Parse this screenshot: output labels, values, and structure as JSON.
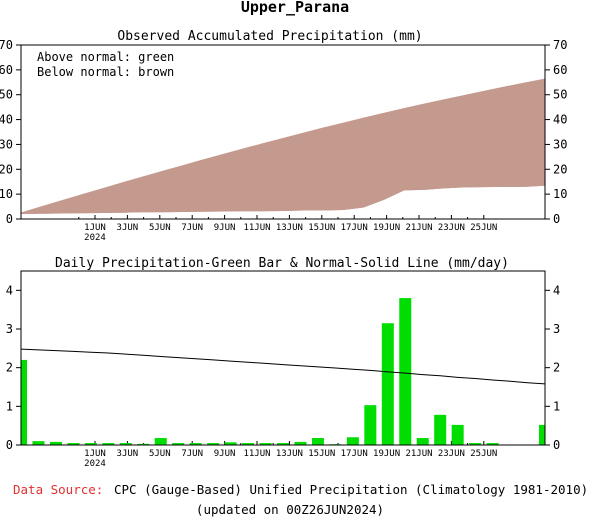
{
  "page": {
    "title": "Upper_Parana"
  },
  "footer": {
    "source_label": "Data Source:",
    "source_text": "CPC (Gauge-Based) Unified Precipitation (Climatology 1981-2010)",
    "updated": "(updated on 00Z26JUN2024)"
  },
  "colors": {
    "below_normal": "#c49a8f",
    "above_normal": "#00dd00",
    "bar": "#00dd00",
    "normal_line": "#000000",
    "source_label": "#e33030"
  },
  "chart_data": [
    {
      "type": "area",
      "title": "Observed Accumulated Precipitation (mm)",
      "annotations": [
        "Above normal: green",
        "Below normal: brown"
      ],
      "ylim": [
        0,
        70
      ],
      "yticks": [
        0,
        10,
        20,
        30,
        40,
        50,
        60,
        70
      ],
      "xtick_labels": [
        "1JUN",
        "3JUN",
        "5JUN",
        "7JUN",
        "9JUN",
        "11JUN",
        "13JUN",
        "15JUN",
        "17JUN",
        "19JUN",
        "21JUN",
        "23JUN",
        "25JUN"
      ],
      "year_label": "2024",
      "series": [
        {
          "name": "Observed",
          "values": [
            2.2,
            2.3,
            2.4,
            2.5,
            2.6,
            2.7,
            2.9,
            2.9,
            3.0,
            3.1,
            3.2,
            3.3,
            3.3,
            3.4,
            3.6,
            3.6,
            3.8,
            4.8,
            7.9,
            11.7,
            11.9,
            12.5,
            12.9,
            13.0,
            13.1,
            13.1,
            13.6
          ]
        },
        {
          "name": "Normal",
          "values": [
            2.4,
            4.9,
            7.3,
            9.7,
            12.1,
            14.5,
            16.8,
            19.1,
            21.4,
            23.7,
            25.9,
            28.1,
            30.3,
            32.4,
            34.5,
            36.6,
            38.6,
            40.6,
            42.5,
            44.4,
            46.2,
            48.0,
            49.7,
            51.4,
            53.1,
            54.7,
            56.3
          ]
        }
      ]
    },
    {
      "type": "bar",
      "title": "Daily Precipitation-Green Bar & Normal-Solid Line (mm/day)",
      "ylim": [
        0,
        4.5
      ],
      "yticks": [
        0,
        1,
        2,
        3,
        4
      ],
      "xtick_labels": [
        "1JUN",
        "3JUN",
        "5JUN",
        "7JUN",
        "9JUN",
        "11JUN",
        "13JUN",
        "15JUN",
        "17JUN",
        "19JUN",
        "21JUN",
        "23JUN",
        "25JUN"
      ],
      "year_label": "2024",
      "series": [
        {
          "name": "Daily Precipitation",
          "values": [
            2.2,
            0.1,
            0.08,
            0.05,
            0.05,
            0.05,
            0.05,
            0.03,
            0.18,
            0.05,
            0.05,
            0.05,
            0.07,
            0.05,
            0.05,
            0.05,
            0.08,
            0.18,
            0.02,
            0.2,
            1.03,
            3.15,
            3.8,
            0.18,
            0.78,
            0.52,
            0.05,
            0.05,
            0.0,
            0.0,
            0.52
          ]
        },
        {
          "name": "Normal",
          "values": [
            2.48,
            2.46,
            2.44,
            2.42,
            2.4,
            2.38,
            2.35,
            2.32,
            2.29,
            2.26,
            2.23,
            2.2,
            2.17,
            2.14,
            2.11,
            2.08,
            2.05,
            2.02,
            1.99,
            1.96,
            1.93,
            1.89,
            1.86,
            1.82,
            1.79,
            1.75,
            1.72,
            1.68,
            1.65,
            1.61,
            1.58
          ]
        }
      ]
    }
  ]
}
